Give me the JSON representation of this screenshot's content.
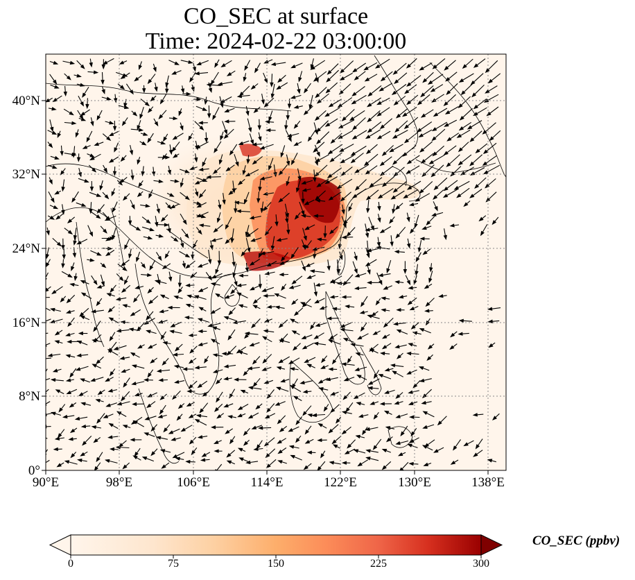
{
  "title_line1": "CO_SEC at surface",
  "title_line2": "Time: 2024-02-22 03:00:00",
  "map": {
    "lon_range": [
      90,
      139
    ],
    "lat_range": [
      0,
      45
    ],
    "lat_ticks": [
      {
        "value": 0,
        "label": "0°"
      },
      {
        "value": 8,
        "label": "8°N"
      },
      {
        "value": 16,
        "label": "16°N"
      },
      {
        "value": 24,
        "label": "24°N"
      },
      {
        "value": 32,
        "label": "32°N"
      },
      {
        "value": 40,
        "label": "40°N"
      }
    ],
    "lon_ticks": [
      {
        "value": 90,
        "label": "90°E"
      },
      {
        "value": 98,
        "label": "98°E"
      },
      {
        "value": 106,
        "label": "106°E"
      },
      {
        "value": 114,
        "label": "114°E"
      },
      {
        "value": 122,
        "label": "122°E"
      },
      {
        "value": 130,
        "label": "130°E"
      },
      {
        "value": 138,
        "label": "138°E"
      }
    ],
    "gridlines": "dotted",
    "overlay": "wind-vectors",
    "background_color": "#fff5eb"
  },
  "colorbar": {
    "label": "CO_SEC (ppbv)",
    "min": 0,
    "max": 300,
    "ticks": [
      "0",
      "75",
      "150",
      "225",
      "300"
    ],
    "colormap": [
      "#fff5eb",
      "#fdd0a2",
      "#fdae6b",
      "#fd8d3c",
      "#f16913",
      "#d94801",
      "#a63603",
      "#7f0000"
    ],
    "extend": "both"
  }
}
